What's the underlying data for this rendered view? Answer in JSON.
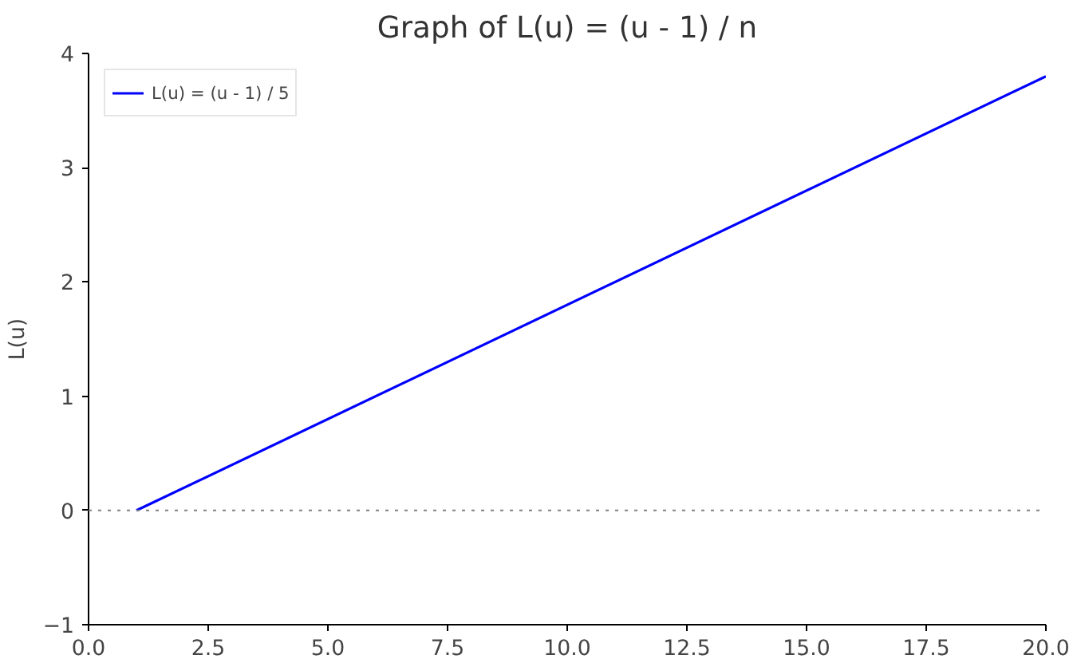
{
  "chart_data": {
    "type": "line",
    "title": "Graph of L(u) = (u - 1) / n",
    "ylabel": "L(u)",
    "x": [
      1,
      20
    ],
    "series": [
      {
        "name": "L(u) = (u - 1) / 5",
        "color": "#0000ff",
        "values": [
          0,
          3.8
        ]
      }
    ],
    "xlim": [
      0,
      20
    ],
    "ylim": [
      -1,
      4
    ],
    "xticks": [
      {
        "value": 0,
        "label": "0.0"
      },
      {
        "value": 2.5,
        "label": "2.5"
      },
      {
        "value": 5,
        "label": "5.0"
      },
      {
        "value": 7.5,
        "label": "7.5"
      },
      {
        "value": 10,
        "label": "10.0"
      },
      {
        "value": 12.5,
        "label": "12.5"
      },
      {
        "value": 15,
        "label": "15.0"
      },
      {
        "value": 17.5,
        "label": "17.5"
      },
      {
        "value": 20,
        "label": "20.0"
      }
    ],
    "yticks": [
      {
        "value": -1,
        "label": "−1"
      },
      0,
      1,
      2,
      3,
      4
    ],
    "ref_lines": [
      {
        "axis": "y",
        "value": 0,
        "color": "#808080",
        "line_style": "dotted"
      }
    ],
    "grid": false,
    "legend": "top left",
    "line_style": "solid",
    "marker": "none"
  }
}
